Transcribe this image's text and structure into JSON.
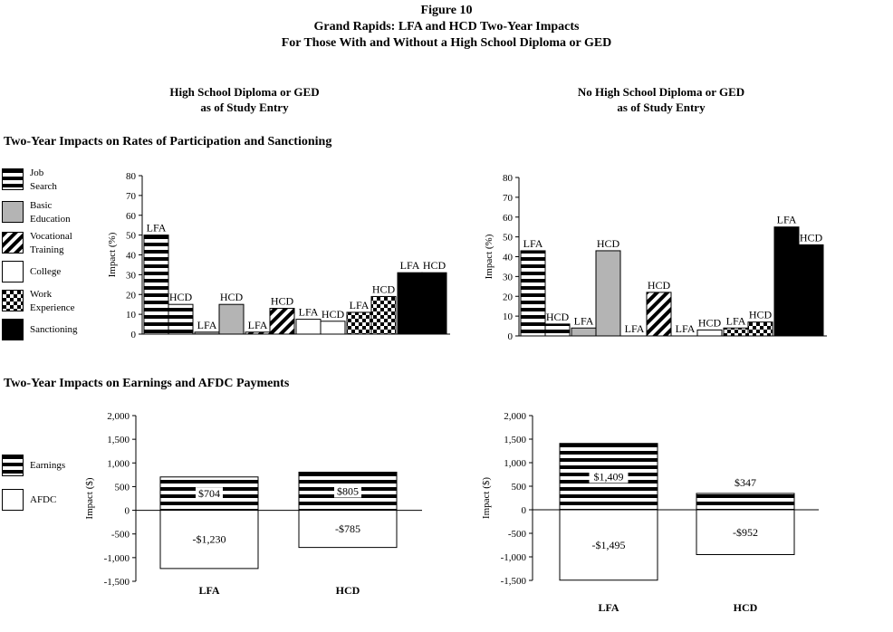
{
  "figure": {
    "number": "Figure 10",
    "title_line1": "Grand Rapids: LFA and HCD Two-Year Impacts",
    "title_line2": "For Those With and Without a High School Diploma or GED"
  },
  "columns": {
    "left": {
      "line1": "High School Diploma or GED",
      "line2": "as of Study Entry"
    },
    "right": {
      "line1": "No High School Diploma or GED",
      "line2": "as of Study Entry"
    }
  },
  "sections": {
    "participation": "Two-Year Impacts on Rates of Participation and Sanctioning",
    "earnings": "Two-Year Impacts on Earnings and AFDC Payments"
  },
  "legend_participation": [
    {
      "line1": "Job",
      "line2": "Search",
      "pattern": "stripes"
    },
    {
      "line1": "Basic",
      "line2": "Education",
      "pattern": "gray"
    },
    {
      "line1": "Vocational",
      "line2": "Training",
      "pattern": "diag"
    },
    {
      "line1": "College",
      "line2": "",
      "pattern": "white"
    },
    {
      "line1": "Work",
      "line2": "Experience",
      "pattern": "checker"
    },
    {
      "line1": "Sanctioning",
      "line2": "",
      "pattern": "black"
    }
  ],
  "legend_earnings": [
    {
      "label": "Earnings",
      "pattern": "stripes"
    },
    {
      "label": "AFDC",
      "pattern": "white"
    }
  ],
  "chart_data": [
    {
      "type": "bar",
      "id": "participation-diploma",
      "ylabel": "Impact (%)",
      "ylim": [
        0,
        80
      ],
      "ticks": [
        "0",
        "10",
        "20",
        "30",
        "40",
        "50",
        "60",
        "70",
        "80"
      ],
      "categories": [
        "Job Search",
        "Basic Education",
        "Vocational Training",
        "College",
        "Work Experience",
        "Sanctioning"
      ],
      "series": [
        {
          "name": "LFA",
          "values": [
            50,
            1,
            1,
            7.5,
            11,
            31
          ]
        },
        {
          "name": "HCD",
          "values": [
            15,
            15,
            13,
            6.5,
            19,
            31
          ]
        }
      ],
      "label_values": [
        "LFA",
        "HCD"
      ]
    },
    {
      "type": "bar",
      "id": "participation-nodiploma",
      "ylabel": "Impact (%)",
      "ylim": [
        0,
        80
      ],
      "ticks": [
        "0",
        "10",
        "20",
        "30",
        "40",
        "50",
        "60",
        "70",
        "80"
      ],
      "categories": [
        "Job Search",
        "Basic Education",
        "Vocational Training",
        "College",
        "Work Experience",
        "Sanctioning"
      ],
      "series": [
        {
          "name": "LFA",
          "values": [
            43,
            4,
            0,
            0,
            4,
            55
          ]
        },
        {
          "name": "HCD",
          "values": [
            6,
            43,
            22,
            3,
            7,
            46
          ]
        }
      ],
      "label_values": [
        "LFA",
        "HCD"
      ]
    },
    {
      "type": "bar",
      "id": "earnings-diploma",
      "ylabel": "Impact ($)",
      "ylim": [
        -1500,
        2000
      ],
      "ticks": [
        "-1,500",
        "-1,000",
        "-500",
        "0",
        "500",
        "1,000",
        "1,500",
        "2,000"
      ],
      "categories": [
        "LFA",
        "HCD"
      ],
      "series": [
        {
          "name": "Earnings",
          "values": [
            704,
            805
          ],
          "labels": [
            "$704",
            "$805"
          ]
        },
        {
          "name": "AFDC",
          "values": [
            -1230,
            -785
          ],
          "labels": [
            "-$1,230",
            "-$785"
          ]
        }
      ]
    },
    {
      "type": "bar",
      "id": "earnings-nodiploma",
      "ylabel": "Impact ($)",
      "ylim": [
        -1500,
        2000
      ],
      "ticks": [
        "-1,500",
        "-1,000",
        "-500",
        "0",
        "500",
        "1,000",
        "1,500",
        "2,000"
      ],
      "categories": [
        "LFA",
        "HCD"
      ],
      "series": [
        {
          "name": "Earnings",
          "values": [
            1409,
            347
          ],
          "labels": [
            "$1,409",
            "$347"
          ]
        },
        {
          "name": "AFDC",
          "values": [
            -1495,
            -952
          ],
          "labels": [
            "-$1,495",
            "-$952"
          ]
        }
      ]
    }
  ]
}
